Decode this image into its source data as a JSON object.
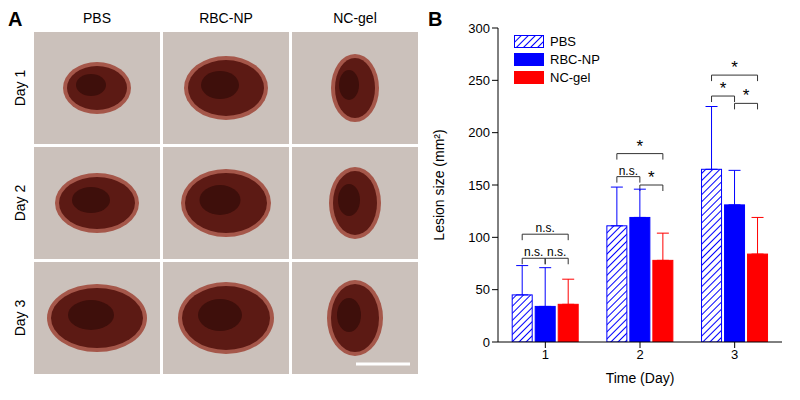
{
  "panel_a": {
    "label": "A",
    "columns": [
      "PBS",
      "RBC-NP",
      "NC-gel"
    ],
    "rows": [
      "Day 1",
      "Day 2",
      "Day 3"
    ]
  },
  "chart_data": {
    "type": "bar",
    "title": "B",
    "categories": [
      "1",
      "2",
      "3"
    ],
    "x_label": "Time (Day)",
    "y_label": "Lesion size (mm²)",
    "ylim": [
      0,
      300
    ],
    "yticks": [
      0,
      50,
      100,
      150,
      200,
      250,
      300
    ],
    "grid": false,
    "legend": "upper left",
    "series": [
      {
        "name": "PBS",
        "color": "#0000ff",
        "line_style": "hatched",
        "values": [
          45,
          111,
          165
        ],
        "errors": [
          28,
          37,
          60
        ]
      },
      {
        "name": "RBC-NP",
        "color": "#0000ff",
        "values": [
          34,
          119,
          131
        ],
        "errors": [
          37,
          27,
          33
        ]
      },
      {
        "name": "NC-gel",
        "color": "#ff0000",
        "values": [
          36,
          78,
          84
        ],
        "errors": [
          24,
          26,
          35
        ]
      }
    ],
    "significance": [
      {
        "category": "1",
        "between": [
          "PBS",
          "RBC-NP"
        ],
        "y": 80,
        "label": "n.s."
      },
      {
        "category": "1",
        "between": [
          "RBC-NP",
          "NC-gel"
        ],
        "y": 80,
        "label": "n.s."
      },
      {
        "category": "1",
        "between": [
          "PBS",
          "NC-gel"
        ],
        "y": 103,
        "label": "n.s."
      },
      {
        "category": "2",
        "between": [
          "PBS",
          "RBC-NP"
        ],
        "y": 158,
        "label": "n.s."
      },
      {
        "category": "2",
        "between": [
          "RBC-NP",
          "NC-gel"
        ],
        "y": 150,
        "label": "*"
      },
      {
        "category": "2",
        "between": [
          "PBS",
          "NC-gel"
        ],
        "y": 180,
        "label": "*"
      },
      {
        "category": "3",
        "between": [
          "PBS",
          "RBC-NP"
        ],
        "y": 235,
        "label": "*"
      },
      {
        "category": "3",
        "between": [
          "RBC-NP",
          "NC-gel"
        ],
        "y": 228,
        "label": "*"
      },
      {
        "category": "3",
        "between": [
          "PBS",
          "NC-gel"
        ],
        "y": 255,
        "label": "*"
      }
    ]
  }
}
